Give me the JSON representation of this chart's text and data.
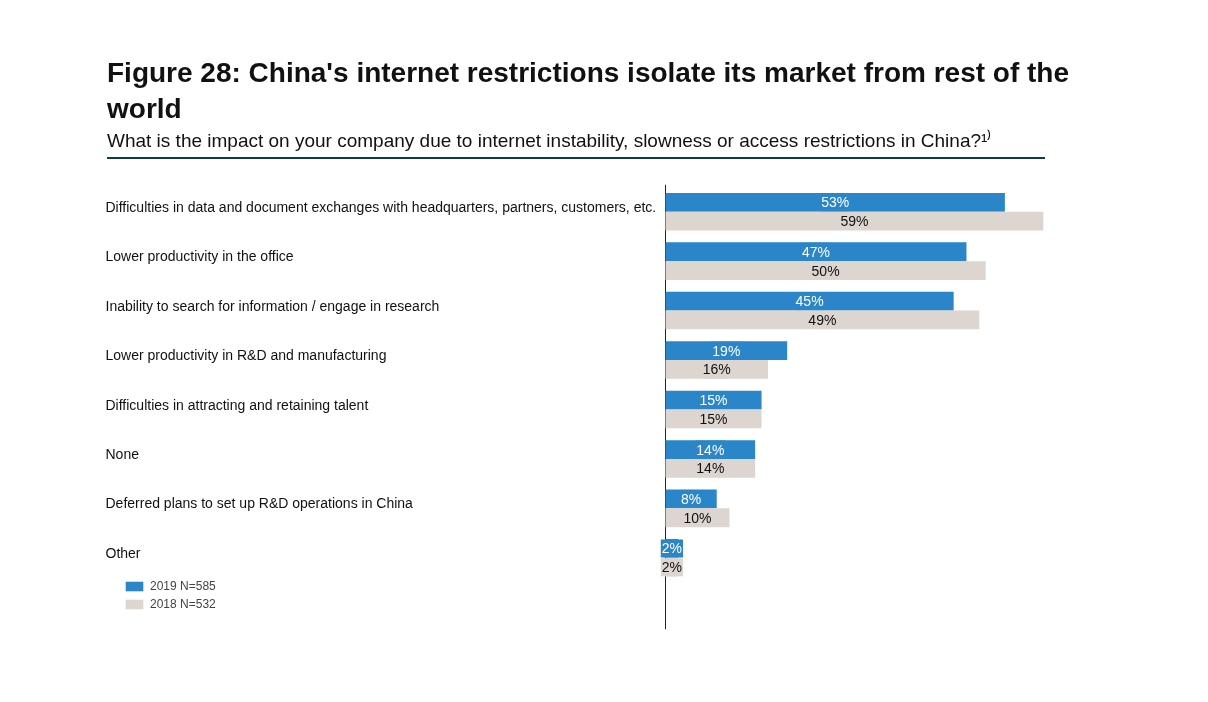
{
  "chart_data": {
    "type": "bar",
    "orientation": "horizontal",
    "title": "Figure 28: China's internet restrictions isolate its market from rest of the world",
    "subtitle": "What is the impact on your company due to internet instability, slowness or access restrictions in China?¹⁾",
    "categories": [
      "Difficulties in data and document exchanges with headquarters, partners, customers, etc.",
      "Lower productivity in the office",
      "Inability to search for information / engage in research",
      "Lower productivity in R&D and manufacturing",
      "Difficulties in attracting and retaining talent",
      "None",
      "Deferred plans to set up R&D operations in China",
      "Other"
    ],
    "series": [
      {
        "name": "2019 N=585",
        "color": "#2a86c8",
        "values": [
          53,
          47,
          45,
          19,
          15,
          14,
          8,
          2
        ],
        "value_labels": [
          "53%",
          "47%",
          "45%",
          "19%",
          "15%",
          "14%",
          "8%",
          "2%"
        ]
      },
      {
        "name": "2018 N=532",
        "color": "#ddd5cf",
        "values": [
          59,
          50,
          49,
          16,
          15,
          14,
          10,
          2
        ],
        "value_labels": [
          "59%",
          "50%",
          "49%",
          "16%",
          "15%",
          "14%",
          "10%",
          "2%"
        ]
      }
    ],
    "xlim": [
      0,
      59.5
    ],
    "tick_labels": "y",
    "grid": false,
    "legend": "bottom left"
  }
}
